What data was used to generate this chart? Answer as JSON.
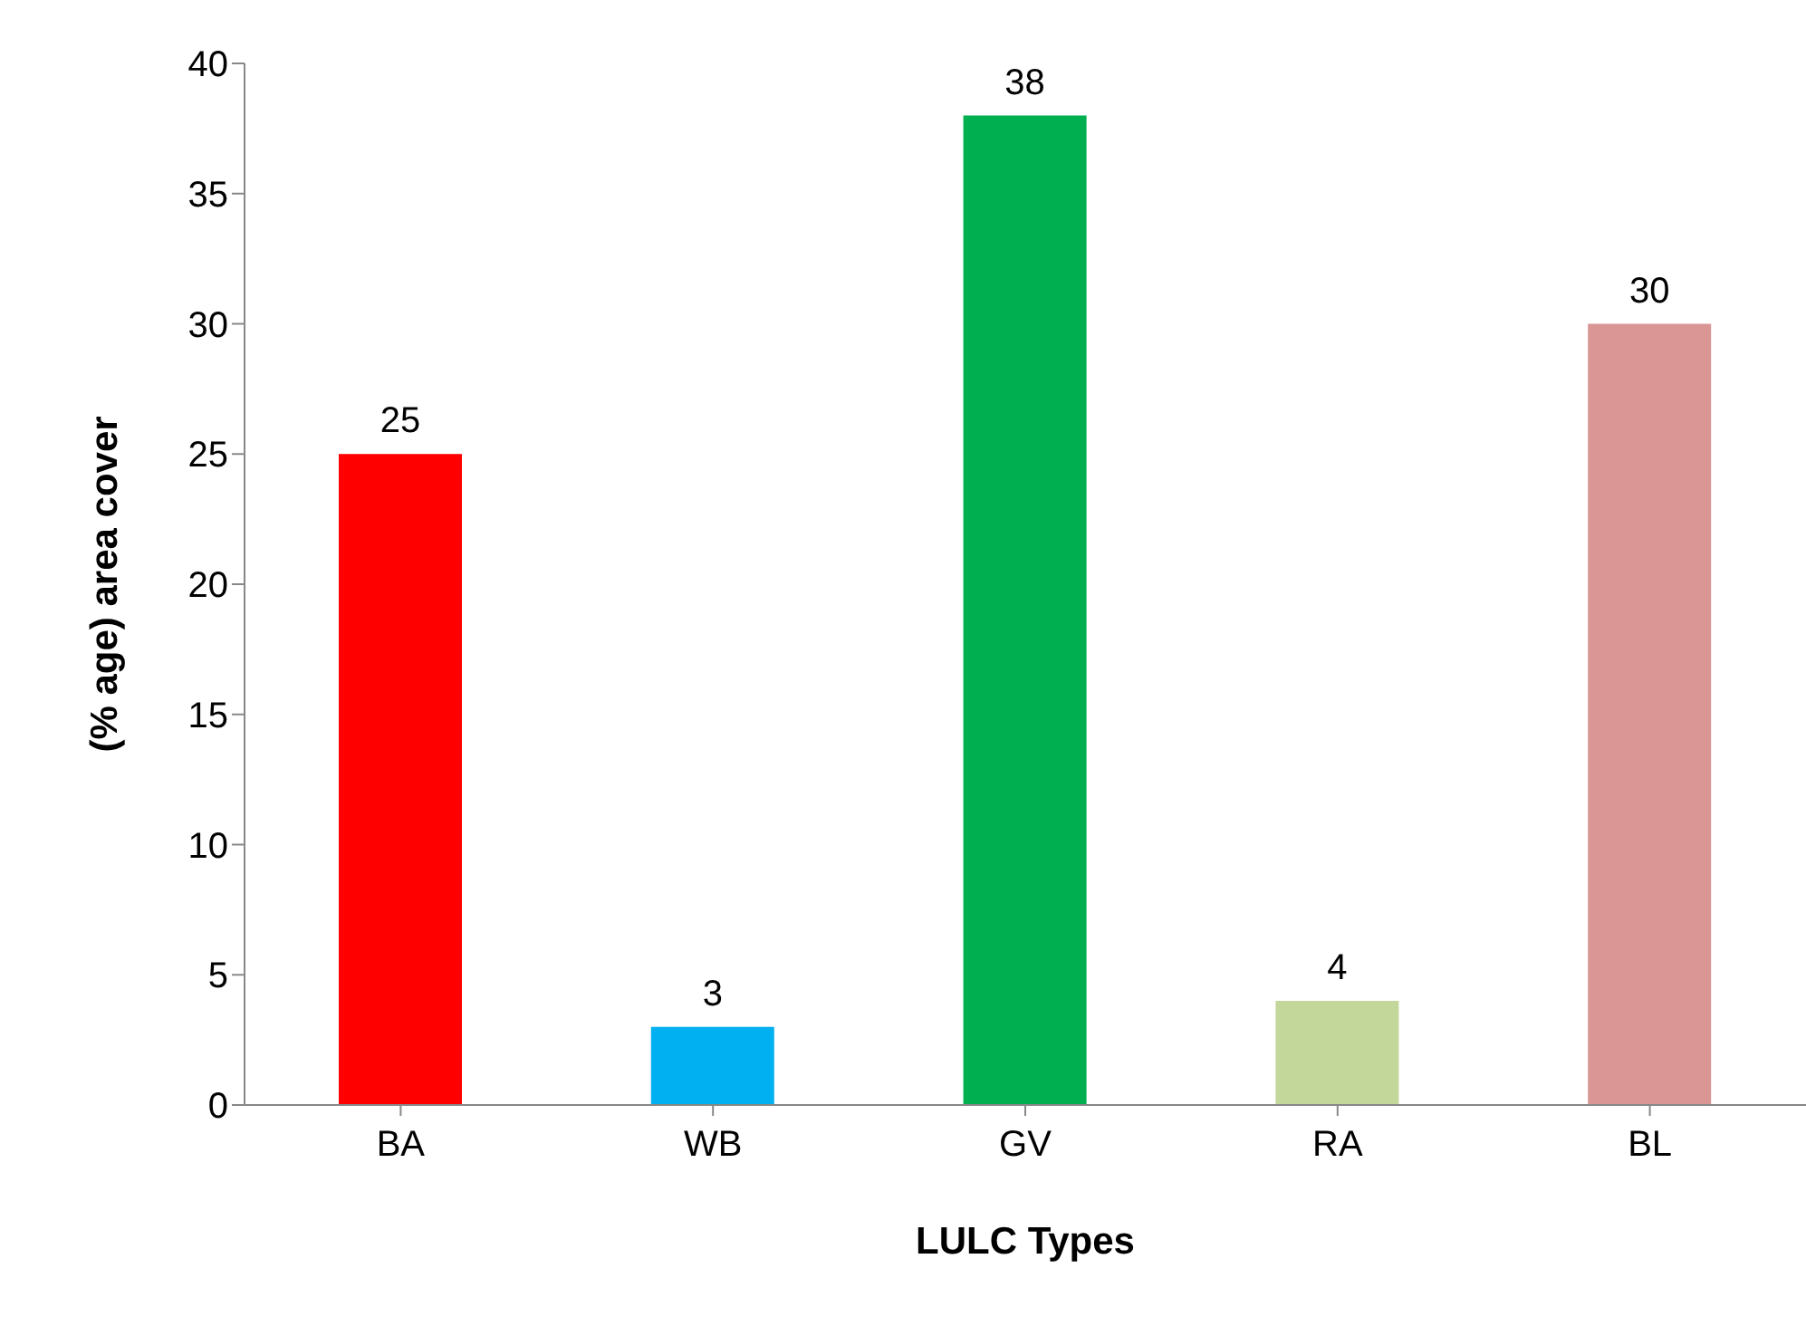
{
  "chart_data": {
    "type": "bar",
    "xlabel": "LULC Types",
    "ylabel": "(% age) area cover",
    "categories": [
      "BA",
      "WB",
      "GV",
      "RA",
      "BL"
    ],
    "values": [
      25,
      3,
      38,
      4,
      30
    ],
    "colors": [
      "#ff0000",
      "#00b0f0",
      "#00b050",
      "#c4d79b",
      "#d99694"
    ],
    "ylim": [
      0,
      40
    ],
    "yticks": [
      0,
      5,
      10,
      15,
      20,
      25,
      30,
      35,
      40
    ],
    "grid": false,
    "data_labels": true
  }
}
